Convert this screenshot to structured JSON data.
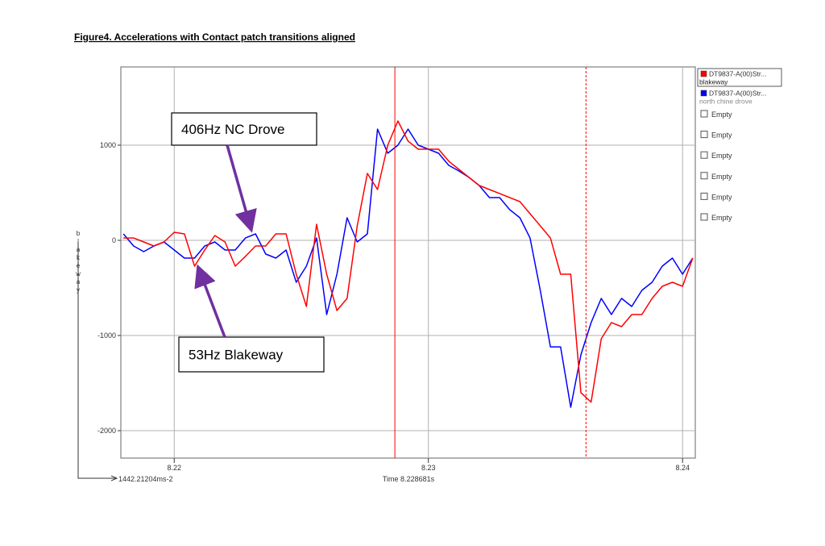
{
  "chart_data": {
    "type": "line",
    "title": "Figure4.  Accelerations with Contact patch transitions aligned",
    "y_label": "blakeway",
    "x_label": "Time 8.228681s",
    "y_readout": "1442.21204ms-2",
    "xlim": [
      8.2179,
      8.2405
    ],
    "ylim": [
      -2288,
      1822
    ],
    "xticks": [
      8.22,
      8.23,
      8.24
    ],
    "yticks": [
      1000,
      0,
      -1000,
      -2000
    ],
    "grid": true,
    "cursors": [
      {
        "x": 8.228681,
        "style": "solid",
        "color": "#ff0000"
      },
      {
        "x": 8.2362,
        "style": "dashed",
        "color": "#ff0000"
      }
    ],
    "x": [
      8.218,
      8.2184,
      8.2188,
      8.2192,
      8.2196,
      8.22,
      8.2204,
      8.2208,
      8.2212,
      8.2216,
      8.222,
      8.2224,
      8.2228,
      8.2232,
      8.2236,
      8.224,
      8.2244,
      8.2248,
      8.2252,
      8.2256,
      8.226,
      8.2264,
      8.2268,
      8.2272,
      8.2276,
      8.228,
      8.2284,
      8.2288,
      8.2292,
      8.2296,
      8.23,
      8.2304,
      8.2308,
      8.2312,
      8.2316,
      8.232,
      8.2324,
      8.2328,
      8.2332,
      8.2336,
      8.234,
      8.2344,
      8.2348,
      8.2352,
      8.2356,
      8.236,
      8.2364,
      8.2368,
      8.2372,
      8.2376,
      8.238,
      8.2384,
      8.2388,
      8.2392,
      8.2396,
      8.24,
      8.2404
    ],
    "series": [
      {
        "name": "blakeway",
        "source": "DT9837-A(00)Str...",
        "color": "#ff0000",
        "values": [
          25,
          25,
          -17,
          -59,
          -17,
          85,
          68,
          -271,
          -102,
          51,
          -17,
          -271,
          -169,
          -59,
          -59,
          68,
          68,
          -356,
          -695,
          169,
          -356,
          -737,
          -610,
          153,
          703,
          534,
          1000,
          1254,
          1042,
          958,
          958,
          958,
          831,
          746,
          661,
          576,
          534,
          492,
          449,
          407,
          280,
          153,
          25,
          -356,
          -356,
          -1600,
          -1700,
          -1034,
          -864,
          -907,
          -780,
          -780,
          -610,
          -483,
          -441,
          -483,
          -186
        ]
      },
      {
        "name": "north chine drove",
        "source": "DT9837-A(00)Str...",
        "color": "#0000ff",
        "values": [
          68,
          -59,
          -119,
          -59,
          -17,
          -102,
          -186,
          -186,
          -59,
          -17,
          -102,
          -102,
          25,
          68,
          -144,
          -186,
          -102,
          -441,
          -271,
          25,
          -780,
          -356,
          237,
          -17,
          68,
          1169,
          915,
          1000,
          1169,
          1000,
          958,
          915,
          788,
          729,
          661,
          576,
          449,
          449,
          322,
          237,
          25,
          -525,
          -1119,
          -1119,
          -1754,
          -1203,
          -864,
          -610,
          -780,
          -610,
          -695,
          -525,
          -441,
          -271,
          -186,
          -356,
          -186
        ]
      }
    ],
    "legend_empty": [
      "Empty",
      "Empty",
      "Empty",
      "Empty",
      "Empty",
      "Empty"
    ],
    "annotations": [
      {
        "text": "406Hz NC Drove"
      },
      {
        "text": "53Hz Blakeway"
      }
    ]
  }
}
